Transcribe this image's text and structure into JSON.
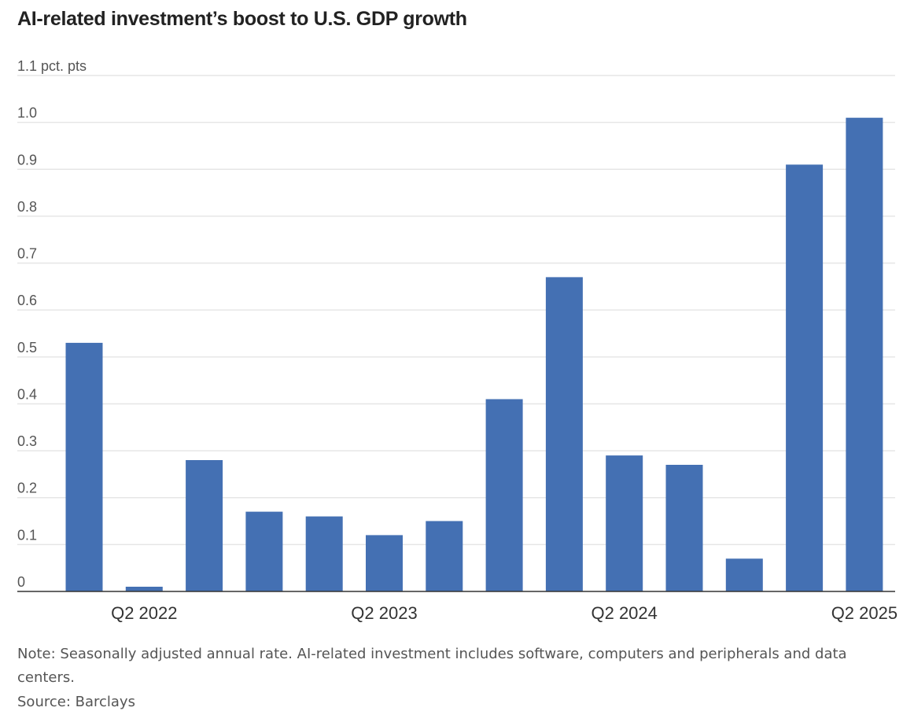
{
  "chart_data": {
    "type": "bar",
    "title": "AI-related investment’s boost to U.S. GDP growth",
    "y_unit_label": "1.1 pct. pts",
    "ylim": [
      0,
      1.1
    ],
    "y_ticks": [
      {
        "value": 1.1,
        "label": "1.1 pct. pts"
      },
      {
        "value": 1.0,
        "label": "1.0"
      },
      {
        "value": 0.9,
        "label": "0.9"
      },
      {
        "value": 0.8,
        "label": "0.8"
      },
      {
        "value": 0.7,
        "label": "0.7"
      },
      {
        "value": 0.6,
        "label": "0.6"
      },
      {
        "value": 0.5,
        "label": "0.5"
      },
      {
        "value": 0.4,
        "label": "0.4"
      },
      {
        "value": 0.3,
        "label": "0.3"
      },
      {
        "value": 0.2,
        "label": "0.2"
      },
      {
        "value": 0.1,
        "label": "0.1"
      },
      {
        "value": 0,
        "label": "0"
      }
    ],
    "x_tick_labels": [
      {
        "index": 1,
        "label": "Q2 2022"
      },
      {
        "index": 5,
        "label": "Q2 2023"
      },
      {
        "index": 9,
        "label": "Q2 2024"
      },
      {
        "index": 13,
        "label": "Q2 2025"
      }
    ],
    "values": [
      0.53,
      0.01,
      0.28,
      0.17,
      0.16,
      0.12,
      0.15,
      0.41,
      0.67,
      0.29,
      0.27,
      0.07,
      0.91,
      1.01
    ],
    "bar_color": "#4470b3",
    "grid": true
  },
  "note": "Note: Seasonally adjusted annual rate. AI-related investment includes software, computers and peripherals and data centers.",
  "source": "Source: Barclays"
}
